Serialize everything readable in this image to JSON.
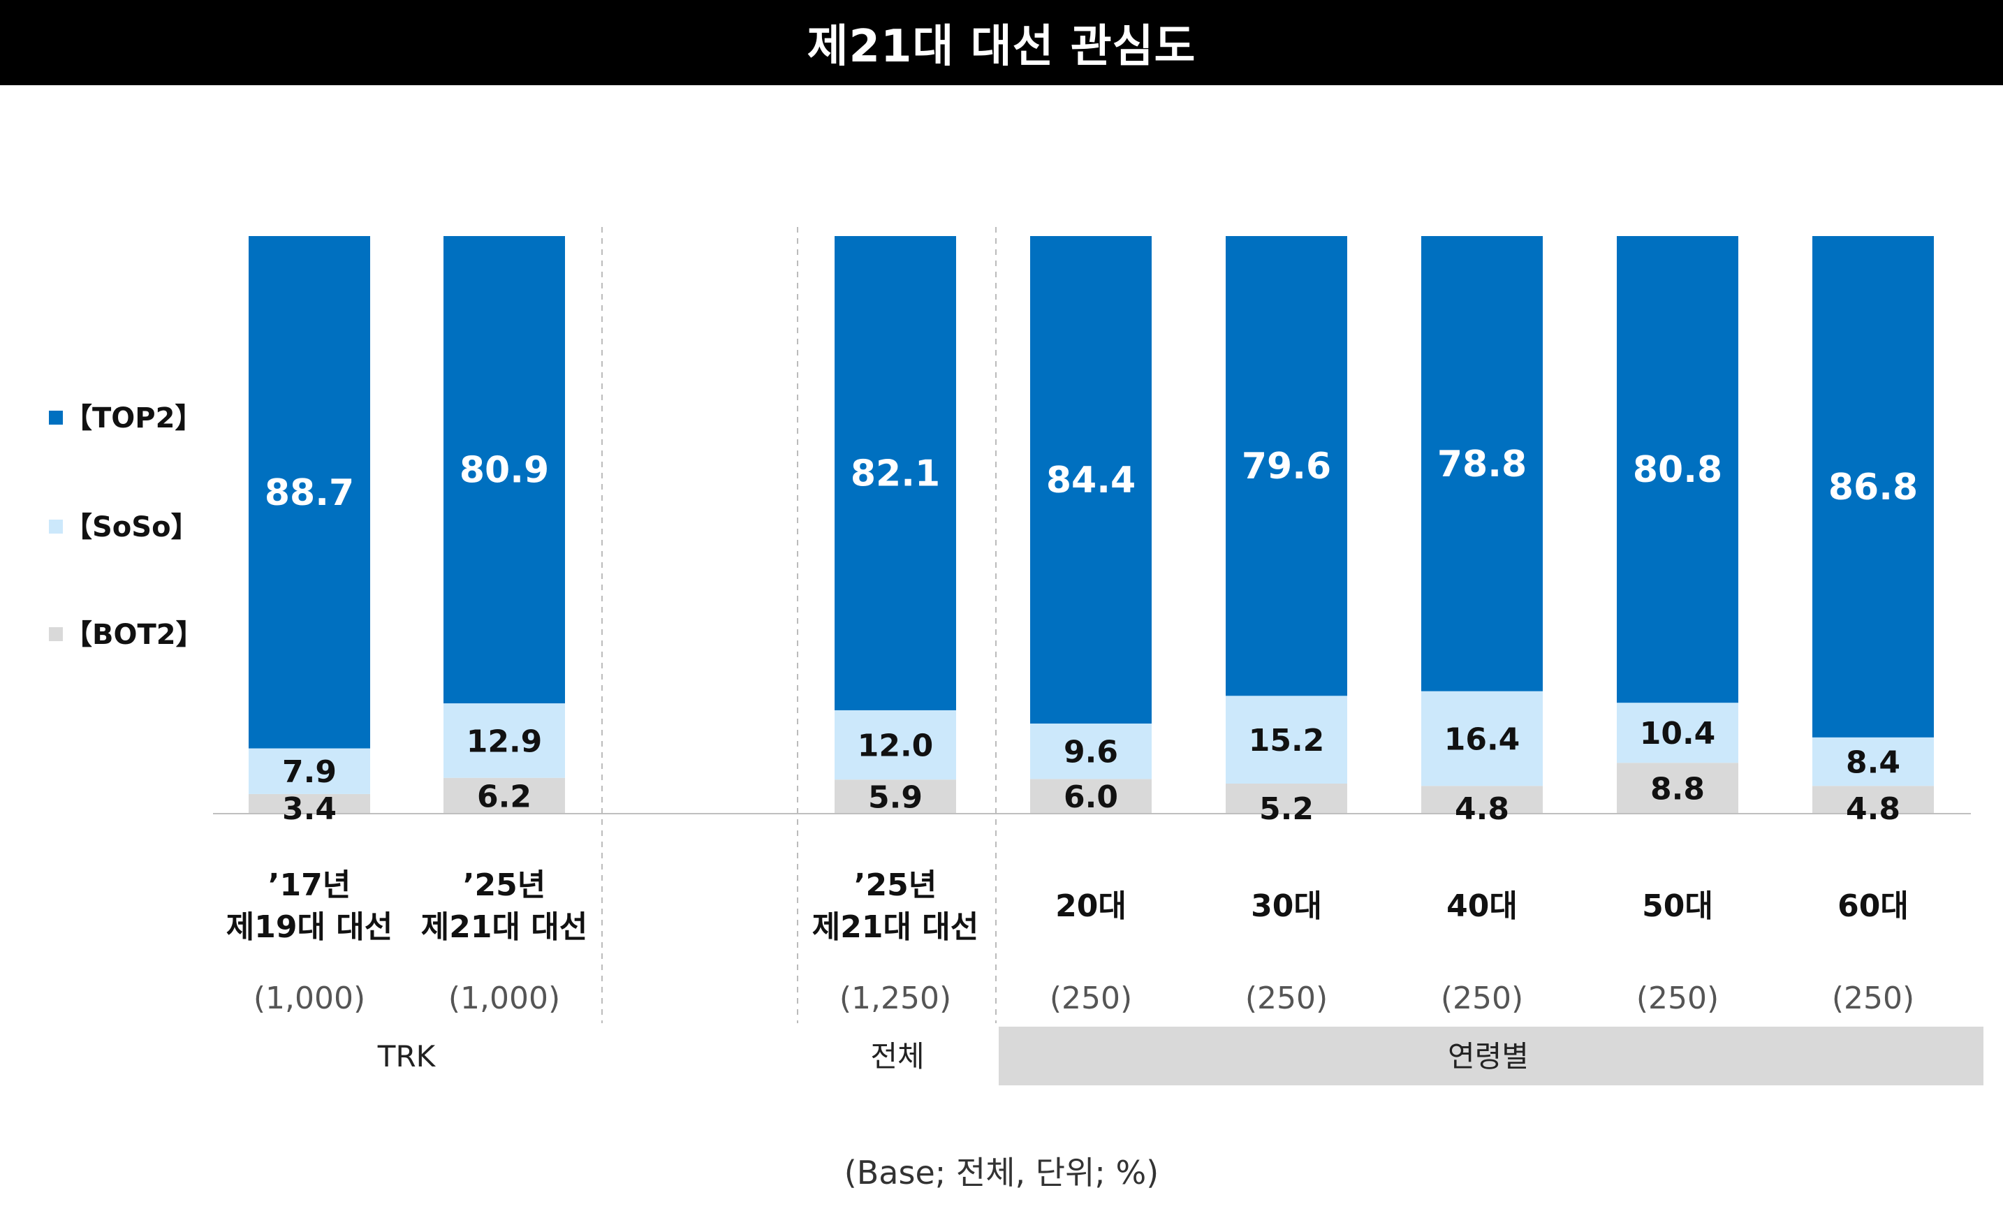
{
  "title": "제21대 대선 관심도",
  "footnote": "(Base; 전체, 단위; %)",
  "colors": {
    "top2": "#0070C0",
    "soso": "#CCE8FB",
    "bot2": "#D9D9D9",
    "title_bg": "#000000",
    "group_bg": "#D9D9D9"
  },
  "legend": [
    {
      "key": "top2",
      "label": "【TOP2】"
    },
    {
      "key": "soso",
      "label": "【SoSo】"
    },
    {
      "key": "bot2",
      "label": "【BOT2】"
    }
  ],
  "groups": [
    {
      "label": "TRK",
      "shaded": false
    },
    {
      "label": "전체",
      "shaded": false
    },
    {
      "label": "연령별",
      "shaded": true
    }
  ],
  "chart_data": {
    "type": "bar",
    "stacked": true,
    "categories": [
      [
        "’17년",
        "제19대 대선"
      ],
      [
        "’25년",
        "제21대 대선"
      ],
      [
        "’25년",
        "제21대 대선"
      ],
      [
        "20대"
      ],
      [
        "30대"
      ],
      [
        "40대"
      ],
      [
        "50대"
      ],
      [
        "60대"
      ]
    ],
    "bases": [
      "(1,000)",
      "(1,000)",
      "(1,250)",
      "(250)",
      "(250)",
      "(250)",
      "(250)",
      "(250)"
    ],
    "series": [
      {
        "name": "【BOT2】",
        "key": "bot2",
        "values": [
          3.4,
          6.2,
          5.9,
          6.0,
          5.2,
          4.8,
          8.8,
          4.8
        ]
      },
      {
        "name": "【SoSo】",
        "key": "soso",
        "values": [
          7.9,
          12.9,
          12.0,
          9.6,
          15.2,
          16.4,
          10.4,
          8.4
        ]
      },
      {
        "name": "【TOP2】",
        "key": "top2",
        "values": [
          88.7,
          80.9,
          82.1,
          84.4,
          79.6,
          78.8,
          80.8,
          86.8
        ]
      }
    ],
    "ylim": [
      0,
      100
    ],
    "grid": false,
    "legend_position": "left"
  }
}
